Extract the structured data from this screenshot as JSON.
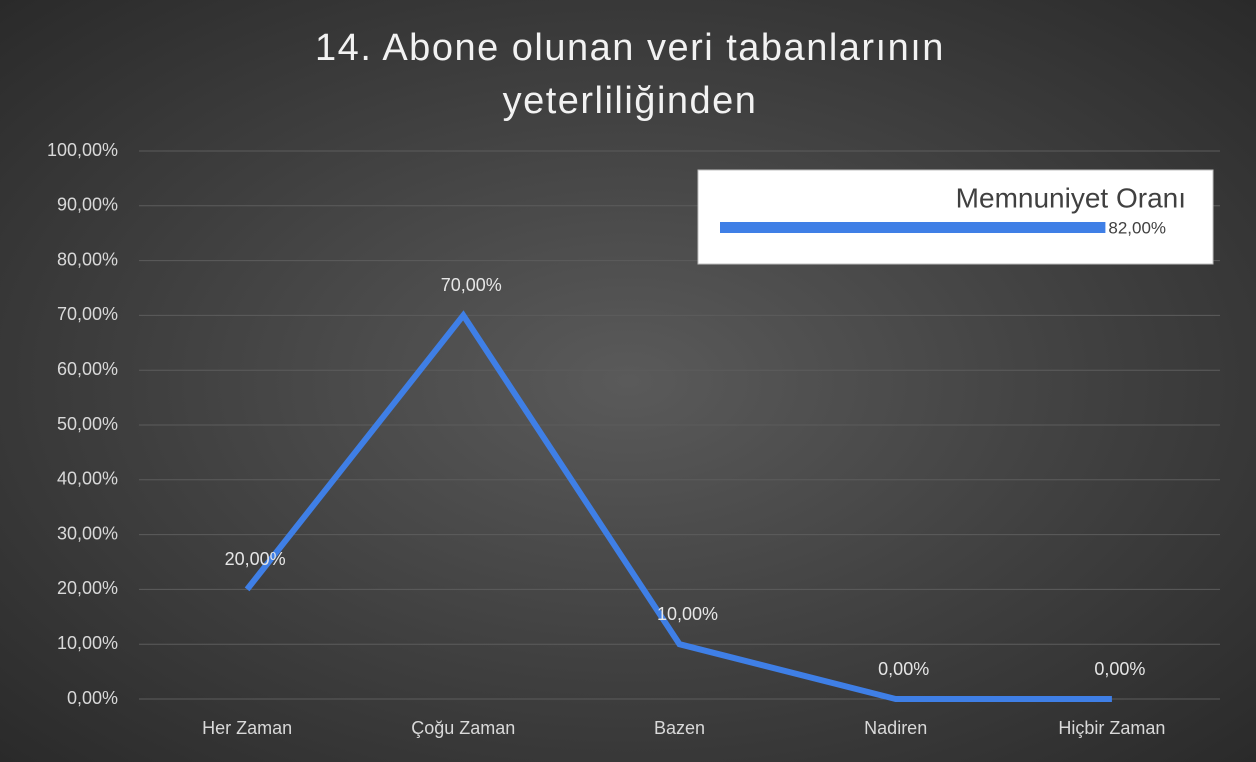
{
  "chart_data": [
    {
      "type": "line",
      "title": "14. Abone olunan veri tabanlarının yeterliliğinden",
      "categories": [
        "Her Zaman",
        "Çoğu Zaman",
        "Bazen",
        "Nadiren",
        "Hiçbir Zaman"
      ],
      "values": [
        20,
        70,
        10,
        0,
        0
      ],
      "value_labels": [
        "20,00%",
        "70,00%",
        "10,00%",
        "0,00%",
        "0,00%"
      ],
      "color": "#3f7fe6",
      "ylim": [
        0,
        100
      ],
      "yticks": [
        {
          "value": 0,
          "label": "0,00%"
        },
        {
          "value": 10,
          "label": "10,00%"
        },
        {
          "value": 20,
          "label": "20,00%"
        },
        {
          "value": 30,
          "label": "30,00%"
        },
        {
          "value": 40,
          "label": "40,00%"
        },
        {
          "value": 50,
          "label": "50,00%"
        },
        {
          "value": 60,
          "label": "60,00%"
        },
        {
          "value": 70,
          "label": "70,00%"
        },
        {
          "value": 80,
          "label": "80,00%"
        },
        {
          "value": 90,
          "label": "90,00%"
        },
        {
          "value": 100,
          "label": "100,00%"
        }
      ],
      "grid": true
    },
    {
      "type": "hbar",
      "title": "Memnuniyet Oranı",
      "values": [
        82
      ],
      "value_labels": [
        "82,00%"
      ],
      "color": "#3f7fe6",
      "xlim": [
        0,
        100
      ]
    }
  ]
}
